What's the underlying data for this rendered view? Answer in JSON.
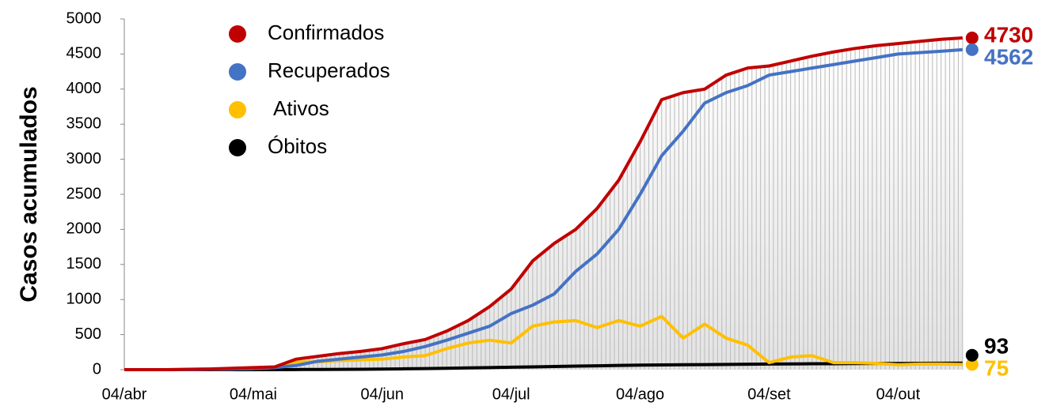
{
  "chart_data": {
    "type": "line",
    "y_label": "Casos acumulados",
    "categories": [
      "04/abr",
      null,
      null,
      null,
      null,
      null,
      "04/mai",
      null,
      null,
      null,
      null,
      null,
      "04/jun",
      null,
      null,
      null,
      null,
      null,
      "04/jul",
      null,
      null,
      null,
      null,
      null,
      "04/ago",
      null,
      null,
      null,
      null,
      null,
      "04/set",
      null,
      null,
      null,
      null,
      null,
      "04/out",
      null,
      null,
      null
    ],
    "series": [
      {
        "name": "Confirmados",
        "color": "#c00000",
        "values": [
          0,
          0,
          0,
          5,
          10,
          20,
          30,
          40,
          150,
          190,
          230,
          260,
          300,
          370,
          430,
          550,
          700,
          900,
          1150,
          1550,
          1800,
          2000,
          2300,
          2700,
          3250,
          3850,
          3950,
          4000,
          4200,
          4300,
          4330,
          4400,
          4470,
          4530,
          4580,
          4620,
          4650,
          4680,
          4710,
          4730
        ]
      },
      {
        "name": "Recuperados",
        "color": "#4472c4",
        "values": [
          0,
          0,
          0,
          0,
          5,
          10,
          15,
          30,
          60,
          120,
          150,
          180,
          210,
          260,
          330,
          420,
          520,
          620,
          800,
          920,
          1080,
          1400,
          1650,
          2000,
          2500,
          3050,
          3400,
          3800,
          3950,
          4050,
          4200,
          4250,
          4300,
          4350,
          4400,
          4450,
          4500,
          4520,
          4540,
          4562
        ]
      },
      {
        "name": "Ativos",
        "color": "#ffc000",
        "values": [
          0,
          0,
          0,
          5,
          5,
          10,
          15,
          30,
          110,
          110,
          130,
          140,
          150,
          180,
          200,
          300,
          380,
          420,
          380,
          620,
          680,
          700,
          600,
          700,
          620,
          760,
          450,
          650,
          450,
          350,
          100,
          180,
          200,
          100,
          100,
          90,
          70,
          80,
          80,
          75
        ]
      },
      {
        "name": "Óbitos",
        "color": "#000000",
        "values": [
          0,
          0,
          0,
          0,
          0,
          0,
          0,
          0,
          2,
          3,
          4,
          5,
          8,
          12,
          16,
          20,
          25,
          30,
          35,
          40,
          45,
          50,
          55,
          60,
          65,
          68,
          70,
          72,
          75,
          78,
          80,
          82,
          84,
          85,
          87,
          88,
          89,
          90,
          92,
          93
        ]
      }
    ],
    "ylim": [
      0,
      5000
    ],
    "yticks": [
      0,
      500,
      1000,
      1500,
      2000,
      2500,
      3000,
      3500,
      4000,
      4500,
      5000
    ]
  }
}
